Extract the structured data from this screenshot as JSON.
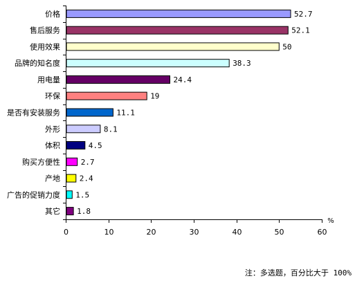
{
  "chart_data": {
    "type": "bar",
    "orientation": "horizontal",
    "categories": [
      "价格",
      "售后服务",
      "使用效果",
      "品牌的知名度",
      "用电量",
      "环保",
      "是否有安装服务",
      "外形",
      "体积",
      "购买方便性",
      "产地",
      "广告的促销力度",
      "其它"
    ],
    "values": [
      52.7,
      52.1,
      50,
      38.3,
      24.4,
      19,
      11.1,
      8.1,
      4.5,
      2.7,
      2.4,
      1.5,
      1.8
    ],
    "data_labels": [
      "52.7",
      "52.1",
      "50",
      "38.3",
      "24.4",
      "19",
      "11.1",
      "8.1",
      "4.5",
      "2.7",
      "2.4",
      "1.5",
      "1.8"
    ],
    "bar_colors": [
      "#9999ff",
      "#993366",
      "#ffffcc",
      "#ccffff",
      "#660066",
      "#ff8080",
      "#0066cc",
      "#ccccff",
      "#000080",
      "#ff00ff",
      "#ffff00",
      "#00ffff",
      "#800080"
    ],
    "xlim": [
      0,
      60
    ],
    "xticks": [
      "0",
      "10",
      "20",
      "30",
      "40",
      "50",
      "60"
    ],
    "x_unit": "%",
    "grid": false,
    "legend": "none",
    "note": "注：多选题，百分比大于 100%"
  }
}
